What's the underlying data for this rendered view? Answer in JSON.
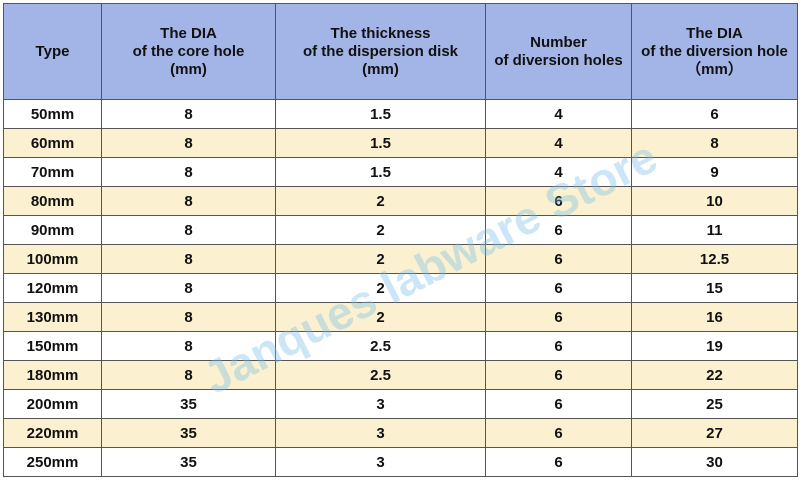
{
  "table": {
    "headers": [
      {
        "lines": [
          "Type"
        ]
      },
      {
        "lines": [
          "The DIA",
          "of the core hole",
          "(mm)"
        ]
      },
      {
        "lines": [
          "The thickness",
          "of the dispersion disk",
          "(mm)"
        ]
      },
      {
        "lines": [
          "Number",
          "of diversion holes"
        ]
      },
      {
        "lines": [
          "The DIA",
          "of the diversion hole",
          "（mm）"
        ]
      }
    ],
    "rows": [
      [
        "50mm",
        "8",
        "1.5",
        "4",
        "6"
      ],
      [
        "60mm",
        "8",
        "1.5",
        "4",
        "8"
      ],
      [
        "70mm",
        "8",
        "1.5",
        "4",
        "9"
      ],
      [
        "80mm",
        "8",
        "2",
        "6",
        "10"
      ],
      [
        "90mm",
        "8",
        "2",
        "6",
        "11"
      ],
      [
        "100mm",
        "8",
        "2",
        "6",
        "12.5"
      ],
      [
        "120mm",
        "8",
        "2",
        "6",
        "15"
      ],
      [
        "130mm",
        "8",
        "2",
        "6",
        "16"
      ],
      [
        "150mm",
        "8",
        "2.5",
        "6",
        "19"
      ],
      [
        "180mm",
        "8",
        "2.5",
        "6",
        "22"
      ],
      [
        "200mm",
        "35",
        "3",
        "6",
        "25"
      ],
      [
        "220mm",
        "35",
        "3",
        "6",
        "27"
      ],
      [
        "250mm",
        "35",
        "3",
        "6",
        "30"
      ]
    ]
  },
  "watermark": "Janques labware Store",
  "colors": {
    "header_bg": "#a3b4e6",
    "alt_row_bg": "#fbf0cf",
    "watermark": "#78beeb"
  }
}
